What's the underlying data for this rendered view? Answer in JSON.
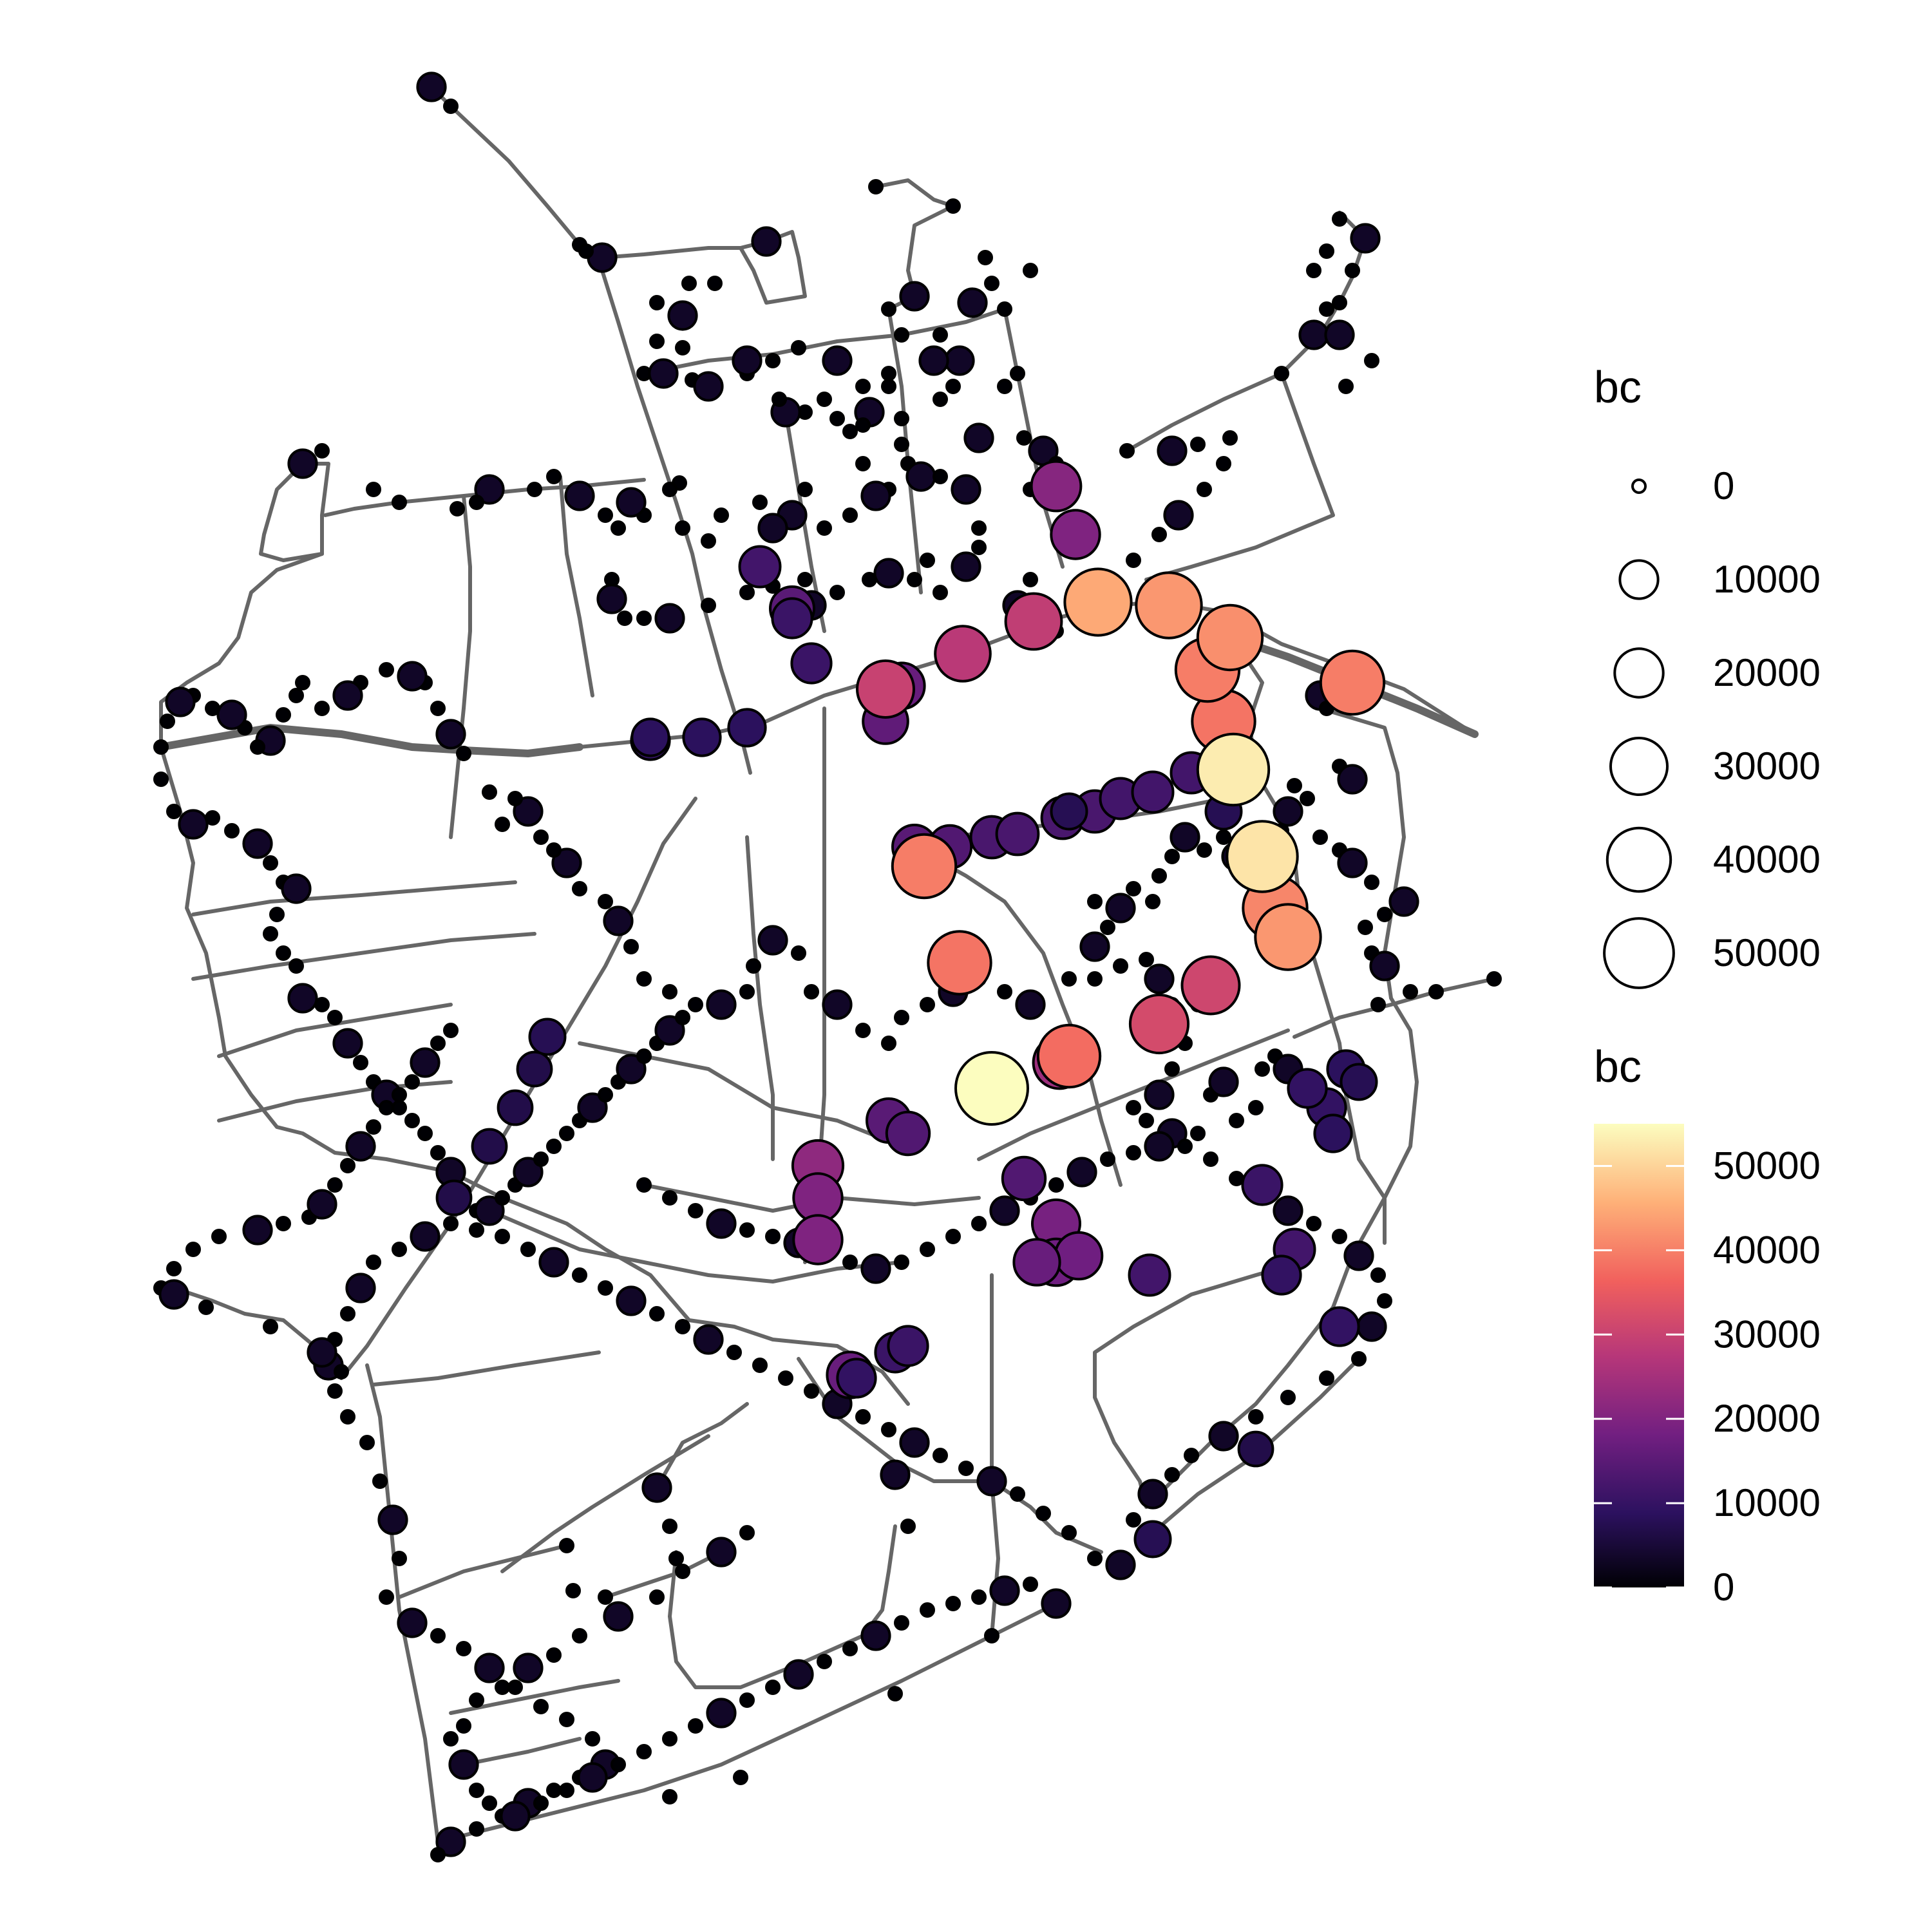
{
  "chart_data": {
    "type": "network",
    "variable": "bc",
    "size_legend": {
      "title": "bc",
      "breaks": [
        "0",
        "10000",
        "20000",
        "30000",
        "40000",
        "50000"
      ]
    },
    "color_legend": {
      "title": "bc",
      "palette": "magma",
      "range": [
        0,
        55000
      ],
      "breaks": [
        "0",
        "10000",
        "20000",
        "30000",
        "40000",
        "50000"
      ],
      "colors": [
        "#000004",
        "#2c115f",
        "#721f81",
        "#b73779",
        "#f1605d",
        "#feb078",
        "#fcfdbf"
      ]
    },
    "high_bc_nodes": [
      {
        "bc": 55000
      },
      {
        "bc": 53000
      },
      {
        "bc": 52000
      },
      {
        "bc": 45000
      },
      {
        "bc": 43000
      },
      {
        "bc": 43000
      },
      {
        "bc": 42000
      },
      {
        "bc": 41000
      },
      {
        "bc": 40000
      },
      {
        "bc": 40000
      },
      {
        "bc": 40000
      },
      {
        "bc": 39000
      },
      {
        "bc": 39000
      },
      {
        "bc": 38000
      },
      {
        "bc": 32000
      },
      {
        "bc": 31000
      },
      {
        "bc": 30000
      },
      {
        "bc": 29000
      },
      {
        "bc": 28000
      }
    ]
  }
}
